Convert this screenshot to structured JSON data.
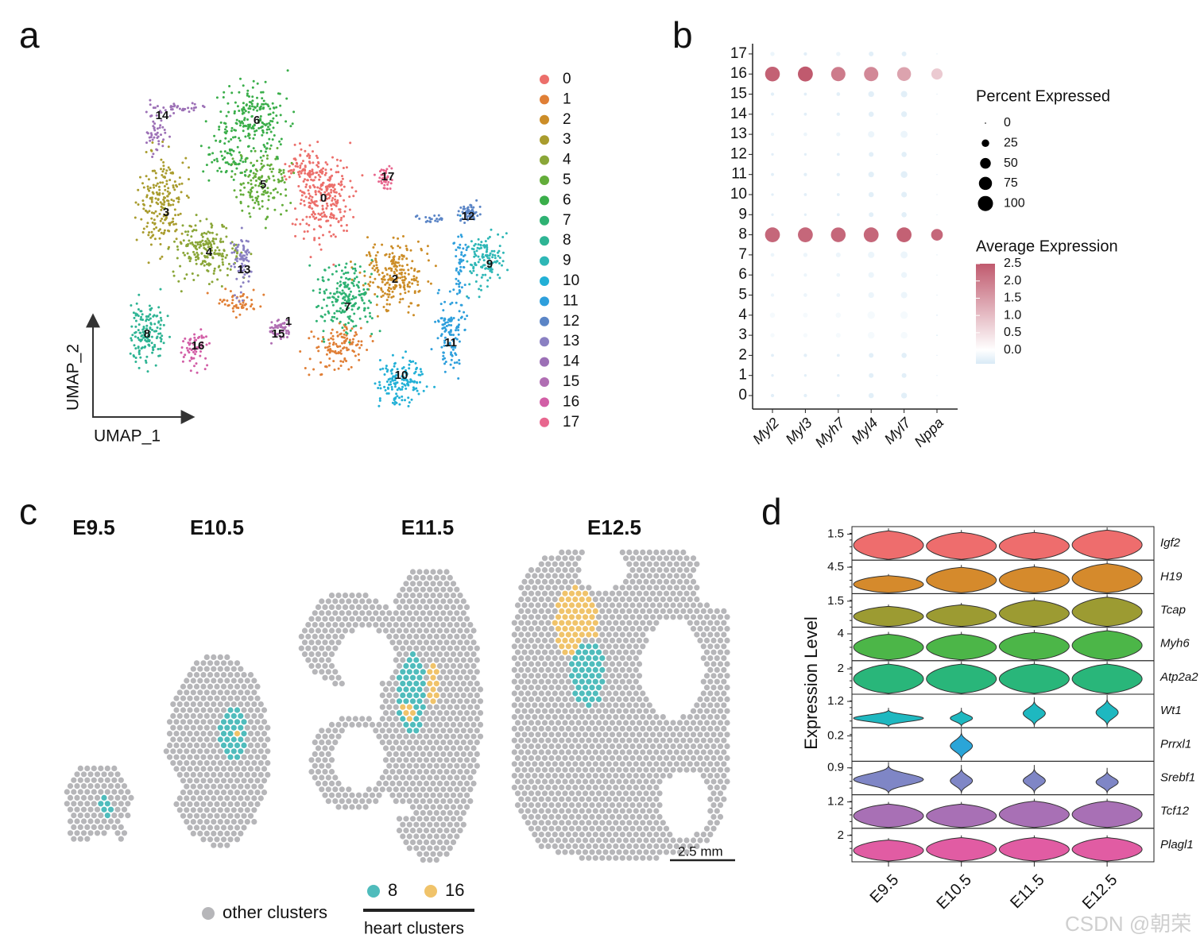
{
  "chart_data": [
    {
      "type": "umap",
      "panel_label": "a",
      "x_label": "UMAP_1",
      "y_label": "UMAP_2",
      "clusters": [
        "0",
        "1",
        "2",
        "3",
        "4",
        "5",
        "6",
        "7",
        "8",
        "9",
        "10",
        "11",
        "12",
        "13",
        "14",
        "15",
        "16",
        "17"
      ],
      "colors": [
        "#ec6f6b",
        "#e07f36",
        "#cc8d28",
        "#a99c2e",
        "#8aa638",
        "#63ad3a",
        "#3aae4a",
        "#2eb273",
        "#2eb494",
        "#2eb7b6",
        "#22b0d6",
        "#2e9fdc",
        "#5b85c6",
        "#8a80c2",
        "#9c70b6",
        "#b06eb3",
        "#d25ea6",
        "#e8678f"
      ]
    },
    {
      "type": "dotplot",
      "panel_label": "b",
      "genes": [
        "Myl2",
        "Myl3",
        "Myh7",
        "Myl4",
        "Myl7",
        "Nppa"
      ],
      "clusters": [
        "0",
        "1",
        "2",
        "3",
        "4",
        "5",
        "6",
        "7",
        "8",
        "9",
        "10",
        "11",
        "12",
        "13",
        "14",
        "15",
        "16",
        "17"
      ],
      "percent": [
        [
          5,
          3,
          4,
          8,
          12,
          5,
          4,
          6,
          97,
          3,
          3,
          4,
          3,
          5,
          3,
          5,
          95,
          8
        ],
        [
          5,
          3,
          5,
          8,
          10,
          6,
          5,
          8,
          97,
          3,
          4,
          5,
          3,
          6,
          4,
          4,
          98,
          5
        ],
        [
          4,
          3,
          4,
          10,
          12,
          6,
          6,
          10,
          95,
          4,
          4,
          5,
          4,
          7,
          5,
          6,
          90,
          8
        ],
        [
          12,
          10,
          10,
          20,
          25,
          15,
          14,
          18,
          97,
          10,
          12,
          14,
          10,
          18,
          12,
          15,
          90,
          10
        ],
        [
          15,
          10,
          12,
          20,
          25,
          18,
          15,
          22,
          97,
          12,
          14,
          20,
          12,
          22,
          15,
          18,
          85,
          10
        ],
        [
          0,
          0,
          0,
          1,
          1,
          0,
          0,
          0,
          60,
          0,
          0,
          0,
          0,
          0,
          0,
          0,
          55,
          0
        ]
      ],
      "avg": [
        [
          -0.3,
          -0.3,
          -0.3,
          -0.1,
          -0.1,
          -0.2,
          -0.2,
          -0.2,
          2.3,
          -0.3,
          -0.3,
          -0.3,
          -0.3,
          -0.2,
          -0.3,
          -0.3,
          2.4,
          -0.2
        ],
        [
          -0.3,
          -0.3,
          -0.3,
          -0.1,
          -0.1,
          -0.2,
          -0.2,
          -0.2,
          2.3,
          -0.3,
          -0.3,
          -0.3,
          -0.3,
          -0.2,
          -0.3,
          -0.3,
          2.5,
          -0.3
        ],
        [
          -0.3,
          -0.3,
          -0.3,
          -0.1,
          -0.1,
          -0.2,
          -0.2,
          -0.2,
          2.3,
          -0.3,
          -0.3,
          -0.3,
          -0.3,
          -0.2,
          -0.3,
          -0.3,
          2.0,
          -0.2
        ],
        [
          -0.3,
          -0.3,
          -0.3,
          -0.1,
          -0.1,
          -0.2,
          -0.2,
          -0.2,
          2.3,
          -0.3,
          -0.3,
          -0.3,
          -0.3,
          -0.2,
          -0.3,
          -0.3,
          1.8,
          -0.3
        ],
        [
          -0.3,
          -0.3,
          -0.3,
          -0.1,
          -0.1,
          -0.2,
          -0.2,
          -0.2,
          2.4,
          -0.3,
          -0.3,
          -0.3,
          -0.3,
          -0.2,
          -0.3,
          -0.3,
          1.4,
          -0.3
        ],
        [
          -0.4,
          -0.4,
          -0.4,
          -0.3,
          -0.3,
          -0.4,
          -0.4,
          -0.4,
          2.3,
          -0.4,
          -0.4,
          -0.4,
          -0.4,
          -0.4,
          -0.4,
          -0.4,
          0.8,
          -0.4
        ]
      ],
      "size_legend_title": "Percent Expressed",
      "size_ticks": [
        0,
        25,
        50,
        75,
        100
      ],
      "color_legend_title": "Average Expression",
      "color_lim": [
        -0.4,
        2.5
      ],
      "color_ticks": [
        {
          "value": 0,
          "label": "0.0"
        },
        0.5,
        {
          "value": 1,
          "label": "1.0"
        },
        1.5,
        {
          "value": 2,
          "label": "2.0"
        },
        2.5
      ],
      "colors": [
        "#d8eaf6",
        "#ffffff",
        "#c05a6e"
      ]
    },
    {
      "type": "spatial",
      "panel_label": "c",
      "titles": [
        "E9.5",
        "E10.5",
        "E11.5",
        "E12.5"
      ],
      "other_label": "other clusters",
      "other_color": "#b6b6b9",
      "heart_clusters": [
        "8",
        "16"
      ],
      "heart_colors": [
        "#4fbcbc",
        "#f0c36a"
      ],
      "heart_label": "heart clusters",
      "scale_bar": "2.5 mm"
    },
    {
      "type": "violin",
      "panel_label": "d",
      "y_label": "Expression Level",
      "categories": [
        "E9.5",
        "E10.5",
        "E11.5",
        "E12.5"
      ],
      "series": [
        {
          "name": "Igf2",
          "color": "#ee6d6d",
          "ylim": [
            0,
            1.9
          ],
          "yticks": [
            1.5
          ],
          "values": [
            1.85,
            1.75,
            1.75,
            1.9
          ]
        },
        {
          "name": "H19",
          "color": "#d58a2c",
          "ylim": [
            0,
            5.6
          ],
          "yticks": [
            4.5
          ],
          "values": [
            3.3,
            4.9,
            5.0,
            5.6
          ]
        },
        {
          "name": "Tcap",
          "color": "#9c9b32",
          "ylim": [
            0,
            1.9
          ],
          "yticks": [
            1.5
          ],
          "values": [
            1.3,
            1.4,
            1.7,
            1.9
          ]
        },
        {
          "name": "Myh6",
          "color": "#4cb648",
          "ylim": [
            0,
            4.9
          ],
          "yticks": [
            4
          ],
          "values": [
            4.3,
            4.3,
            4.6,
            4.9
          ]
        },
        {
          "name": "Atp2a2",
          "color": "#29b67a",
          "ylim": [
            0,
            2.6
          ],
          "yticks": [
            2
          ],
          "values": [
            2.6,
            2.6,
            2.6,
            2.6
          ]
        },
        {
          "name": "Wt1",
          "color": "#1eb8c0",
          "ylim": [
            0,
            1.5
          ],
          "yticks": [
            1.2
          ],
          "values": [
            0.9,
            0.9,
            1.4,
            1.5
          ]
        },
        {
          "name": "Prrxl1",
          "color": "#2aa5d8",
          "ylim": [
            0,
            0.26
          ],
          "yticks": [
            0.2
          ],
          "values": [
            0,
            0.26,
            0,
            0
          ]
        },
        {
          "name": "Srebf1",
          "color": "#7f86c6",
          "ylim": [
            0,
            1.1
          ],
          "yticks": [
            0.9
          ],
          "values": [
            1.1,
            1.0,
            1.0,
            0.9
          ]
        },
        {
          "name": "Tcf12",
          "color": "#a870b5",
          "ylim": [
            0,
            1.5
          ],
          "yticks": [
            1.2
          ],
          "values": [
            1.2,
            1.2,
            1.35,
            1.35
          ]
        },
        {
          "name": "Plagl1",
          "color": "#e15ca3",
          "ylim": [
            0,
            2.5
          ],
          "yticks": [
            2
          ],
          "values": [
            1.8,
            2.0,
            2.0,
            2.0
          ]
        }
      ]
    }
  ],
  "watermark": "CSDN @朝荣"
}
